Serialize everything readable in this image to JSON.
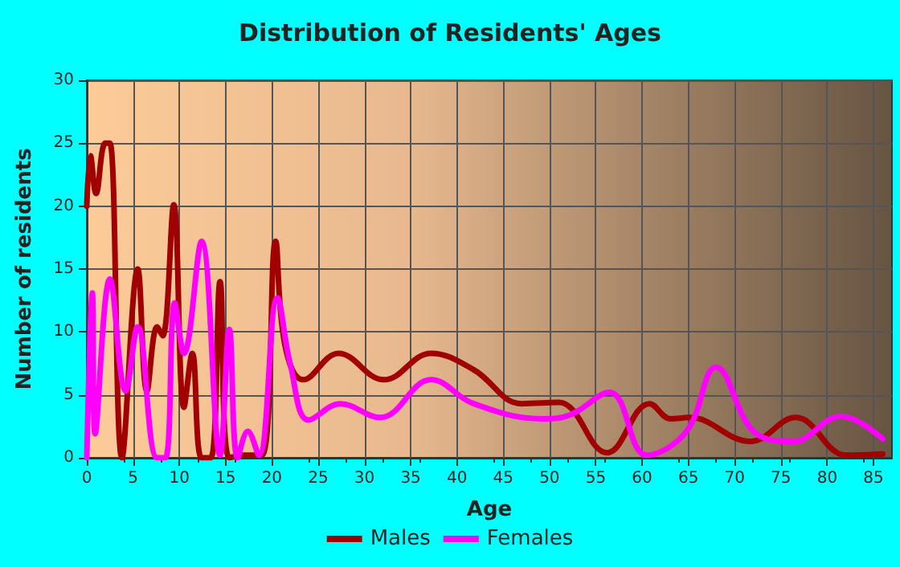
{
  "chart_data": {
    "type": "line",
    "title": "Distribution of Residents' Ages",
    "xlabel": "Age",
    "ylabel": "Number of residents",
    "xlim": [
      0,
      87
    ],
    "xticks": [
      0,
      5,
      10,
      15,
      20,
      25,
      30,
      35,
      40,
      45,
      50,
      55,
      60,
      65,
      70,
      75,
      80,
      85
    ],
    "ylim": [
      0,
      30
    ],
    "yticks": [
      0,
      5,
      10,
      15,
      20,
      25,
      30
    ],
    "grid": true,
    "legend": "bottom",
    "marker": "none",
    "line_style": "solid",
    "series": [
      {
        "name": "Males",
        "color": "#a00000",
        "x": [
          0,
          0.4,
          1,
          2,
          2.5,
          3.8,
          5.5,
          6.5,
          7.6,
          8.2,
          9.4,
          10.5,
          11.4,
          12.4,
          13.4,
          14.4,
          15.4,
          17,
          18.9,
          20.4,
          21.4,
          23.4,
          27.2,
          32.1,
          37.2,
          41.8,
          47,
          51,
          56.2,
          60.8,
          63.1,
          65.1,
          71.7,
          76.6,
          82.1,
          86
        ],
        "values": [
          20,
          24,
          21,
          25,
          25,
          0,
          15,
          5.3,
          10.4,
          9.7,
          20.1,
          4,
          8.3,
          0,
          0,
          14,
          0,
          0.2,
          0.2,
          17.2,
          9,
          6.2,
          8.3,
          6.2,
          8.3,
          7,
          4.3,
          4.4,
          0.4,
          4.3,
          3.1,
          3.2,
          1.3,
          3.2,
          0.2,
          0.3
        ]
      },
      {
        "name": "Females",
        "color": "#ff00ff",
        "x": [
          0,
          0.6,
          0.9,
          2.5,
          4.2,
          5.5,
          7.6,
          8.5,
          9.5,
          10.5,
          12.4,
          14.4,
          15.4,
          16.3,
          17.4,
          18.6,
          20.6,
          22,
          24,
          27.4,
          31.7,
          37.2,
          41.8,
          49.3,
          52.2,
          56.5,
          60.5,
          64.8,
          68,
          72.2,
          76.3,
          81.5,
          86
        ],
        "values": [
          0,
          13.1,
          1.9,
          14.2,
          5.3,
          10.4,
          0,
          0,
          12.3,
          8.3,
          17.2,
          0.2,
          10.2,
          0,
          2.1,
          0.2,
          12.7,
          7.4,
          3,
          4.3,
          3.2,
          6.2,
          4.3,
          3.1,
          3.4,
          5.2,
          0.2,
          2.1,
          7.2,
          2,
          1.3,
          3.3,
          1.5
        ]
      }
    ]
  }
}
